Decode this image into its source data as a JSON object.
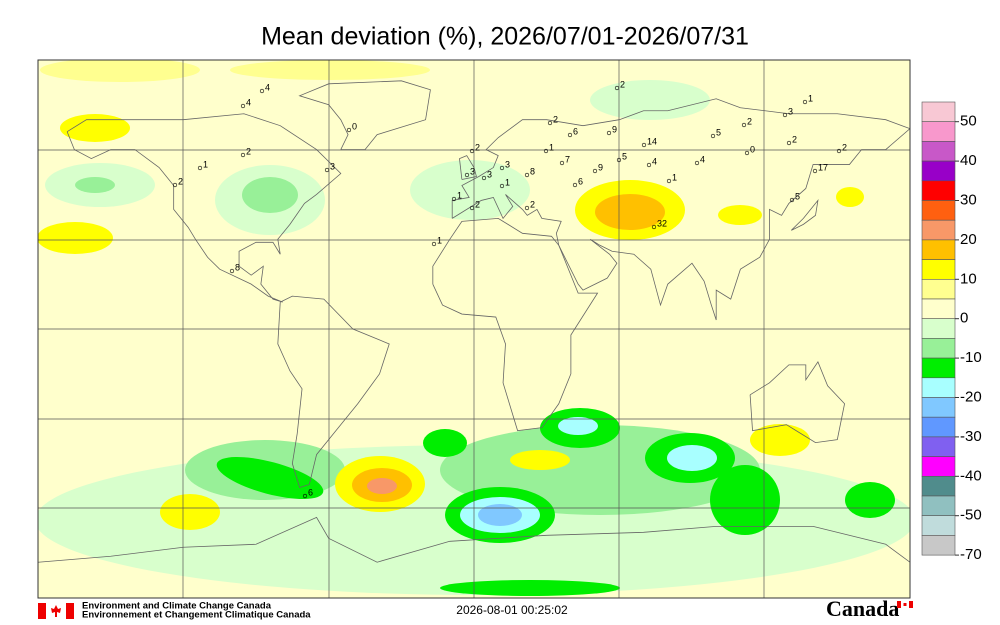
{
  "title": "Mean deviation (%), 2026/07/01-2026/07/31",
  "colorbar": {
    "labels": [
      50,
      40,
      30,
      20,
      10,
      0,
      -10,
      -20,
      -30,
      -40,
      -50,
      -70
    ],
    "colors": [
      "#f8c8d4",
      "#f898cc",
      "#c858c8",
      "#9800c8",
      "#ff0000",
      "#ff6010",
      "#f89868",
      "#ffc000",
      "#ffff00",
      "#ffff90",
      "#ffffcc",
      "#d8ffcc",
      "#98f098",
      "#00ee00",
      "#a8ffff",
      "#80c8ff",
      "#6098ff",
      "#8060f0",
      "#ff00ff",
      "#508c8c",
      "#90c0c0",
      "#c0dcdc",
      "#c8c8c8"
    ]
  },
  "station_labels": [
    4,
    4,
    2,
    0,
    1,
    2,
    3,
    8,
    2,
    2,
    6,
    9,
    14,
    5,
    2,
    3,
    1,
    2,
    0,
    2,
    5,
    4,
    4,
    7,
    9,
    17,
    1,
    5,
    32,
    8,
    3,
    2,
    3,
    3,
    1,
    2,
    6,
    1,
    2,
    1,
    6,
    1
  ],
  "footer": {
    "agency_en": "Environment and Climate Change Canada",
    "agency_fr": "Environnement et Changement Climatique Canada",
    "timestamp": "2026-08-01 00:25:02",
    "wordmark": "Canada"
  }
}
